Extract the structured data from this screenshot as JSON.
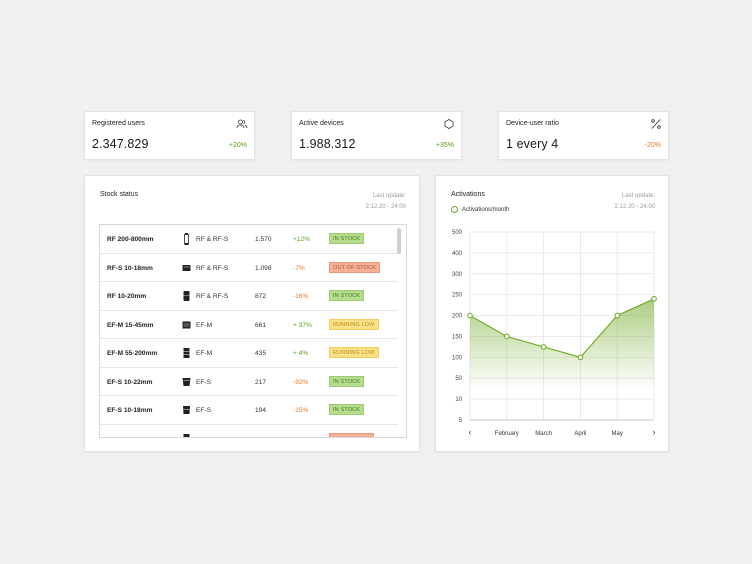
{
  "kpis": [
    {
      "title": "Registered users",
      "value": "2.347.829",
      "delta": "+20%",
      "trend": "positive",
      "icon": "users-icon"
    },
    {
      "title": "Active devices",
      "value": "1.988.312",
      "delta": "+35%",
      "trend": "positive",
      "icon": "hexagon-icon"
    },
    {
      "title": "Device-user ratio",
      "value": "1 every 4",
      "delta": "-20%",
      "trend": "negative",
      "icon": "percent-icon"
    }
  ],
  "stock": {
    "title": "Stock status",
    "last_update_label": "Last update:",
    "last_update_value": "2.12.20 - 24:00",
    "rows": [
      {
        "name": "RF 200-800mm",
        "mount": "RF & RF-S",
        "count": "1.570",
        "delta": "+12%",
        "trend": "positive",
        "status": "IN STOCK",
        "status_kind": "in"
      },
      {
        "name": "RF-S 10-18mm",
        "mount": "RF & RF-S",
        "count": "1.098",
        "delta": "-7%",
        "trend": "negative",
        "status": "OUT OF STOCK",
        "status_kind": "out"
      },
      {
        "name": "RF 10-20mm",
        "mount": "RF & RF-S",
        "count": "872",
        "delta": "-16%",
        "trend": "negative",
        "status": "IN STOCK",
        "status_kind": "in"
      },
      {
        "name": "EF-M 15-45mm",
        "mount": "EF-M",
        "count": "661",
        "delta": "+ 37%",
        "trend": "positive",
        "status": "RUNNING LOW",
        "status_kind": "low"
      },
      {
        "name": "EF-M 55-200mm",
        "mount": "EF-M",
        "count": "435",
        "delta": "+ 4%",
        "trend": "positive",
        "status": "RUNNING LOW",
        "status_kind": "low"
      },
      {
        "name": "EF-S 10-22mm",
        "mount": "EF-S",
        "count": "217",
        "delta": "-92%",
        "trend": "negative",
        "status": "IN STOCK",
        "status_kind": "in"
      },
      {
        "name": "EF-S 10-18mm",
        "mount": "EF-S",
        "count": "194",
        "delta": "-15%",
        "trend": "negative",
        "status": "IN STOCK",
        "status_kind": "in"
      },
      {
        "name": "",
        "mount": "",
        "count": "",
        "delta": "",
        "trend": "negative",
        "status": "",
        "status_kind": "out"
      }
    ]
  },
  "activations": {
    "title": "Activations",
    "last_update_label": "Last update:",
    "last_update_value": "2.12.20 - 24:00",
    "legend": "Activations/month",
    "nav_prev": "‹",
    "nav_next": "›"
  },
  "chart_data": {
    "type": "area",
    "title": "Activations",
    "series": [
      {
        "name": "Activations/month",
        "values": [
          200,
          150,
          125,
          100,
          200,
          240
        ]
      }
    ],
    "categories": [
      "",
      "February",
      "March",
      "April",
      "May",
      ""
    ],
    "y_ticks": [
      "500",
      "400",
      "300",
      "250",
      "200",
      "150",
      "100",
      "50",
      "10",
      "5"
    ],
    "grid": true,
    "legend_position": "top-left",
    "color": "#6aa61d"
  },
  "colors": {
    "positive": "#5a9e1f",
    "negative": "#e07a2a",
    "accent": "#6aa61d"
  }
}
